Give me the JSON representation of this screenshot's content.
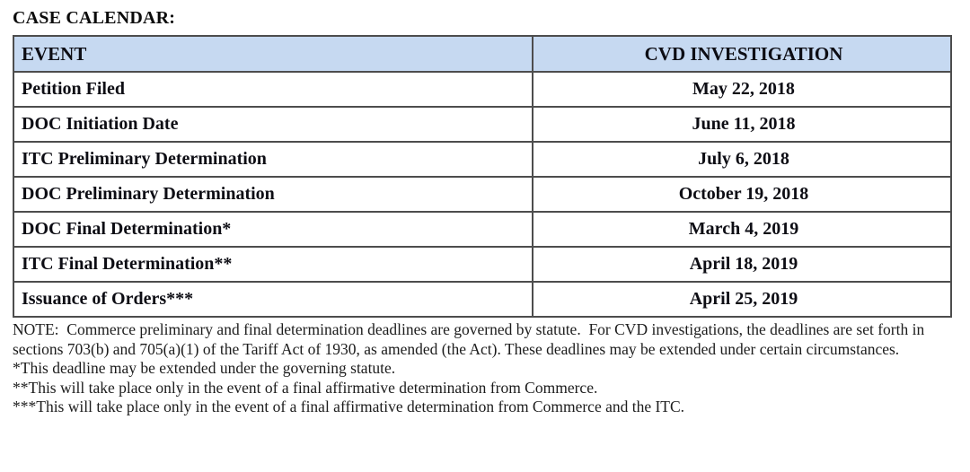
{
  "page": {
    "title": "CASE CALENDAR:"
  },
  "table": {
    "header_bg": "#c6d9f1",
    "border_color": "#4d4d4d",
    "columns": [
      "EVENT",
      "CVD INVESTIGATION"
    ],
    "rows": [
      {
        "event": "Petition Filed",
        "date": "May 22, 2018"
      },
      {
        "event": "DOC Initiation Date",
        "date": "June 11, 2018"
      },
      {
        "event": "ITC Preliminary Determination",
        "date": "July 6, 2018"
      },
      {
        "event": "DOC Preliminary Determination",
        "date": "October 19, 2018"
      },
      {
        "event": "DOC Final Determination*",
        "date": "March 4, 2019"
      },
      {
        "event": "ITC Final Determination**",
        "date": "April 18, 2019"
      },
      {
        "event": "Issuance of Orders***",
        "date": "April 25, 2019"
      }
    ]
  },
  "notes": {
    "main": "NOTE:  Commerce preliminary and final determination deadlines are governed by statute.  For CVD investigations, the deadlines are set forth in sections 703(b) and 705(a)(1) of the Tariff Act of 1930, as amended (the Act). These deadlines may be extended under certain circumstances.",
    "footnotes": [
      "*This deadline may be extended under the governing statute.",
      "**This will take place only in the event of a final affirmative determination from Commerce.",
      "***This will take place only in the event of a final affirmative determination from Commerce and the ITC."
    ]
  }
}
